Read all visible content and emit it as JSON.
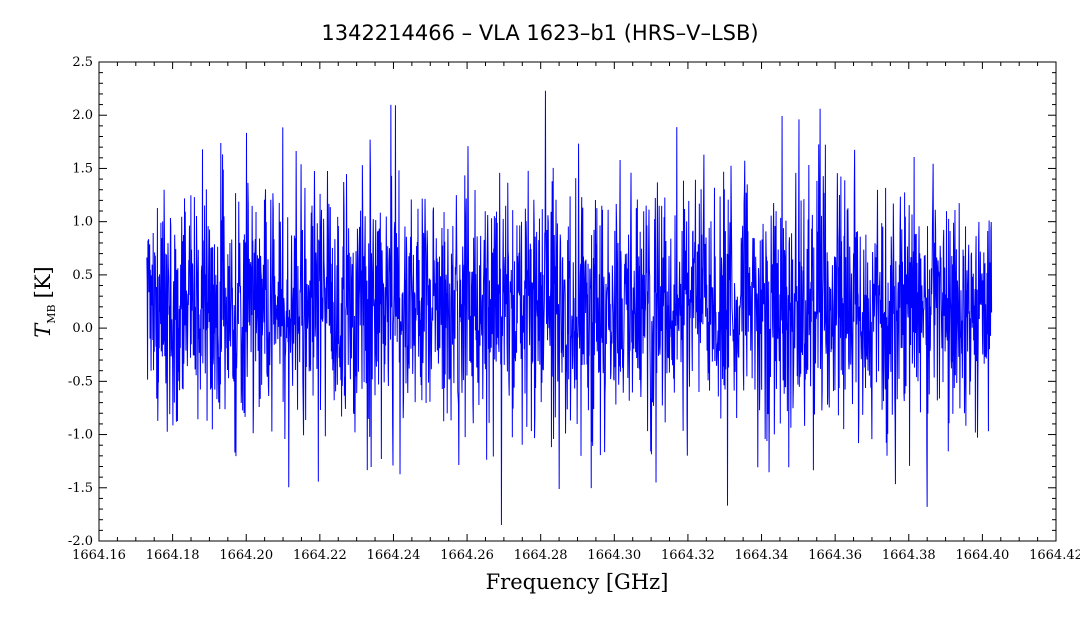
{
  "chart_data": {
    "type": "line",
    "title": "1342214466 – VLA 1623–b1 (HRS–V–LSB)",
    "xlabel": "Frequency [GHz]",
    "ylabel_main": "T",
    "ylabel_sub": "MB",
    "ylabel_unit": "[K]",
    "xlim": [
      1664.16,
      1664.42
    ],
    "ylim": [
      -2.0,
      2.5
    ],
    "grid": false,
    "x_ticks": [
      "1664.16",
      "1664.18",
      "1664.20",
      "1664.22",
      "1664.24",
      "1664.26",
      "1664.28",
      "1664.30",
      "1664.32",
      "1664.34",
      "1664.36",
      "1664.38",
      "1664.40",
      "1664.42"
    ],
    "y_ticks": [
      "-2.0",
      "-1.5",
      "-1.0",
      "-0.5",
      "0.0",
      "0.5",
      "1.0",
      "1.5",
      "2.0",
      "2.5"
    ],
    "series": [
      {
        "color": "#0000ff",
        "x_start": 1664.173,
        "x_end": 1664.4025,
        "points": 2400,
        "mean": 0.2,
        "std": 0.6,
        "min": -1.85,
        "max": 2.35
      }
    ]
  }
}
